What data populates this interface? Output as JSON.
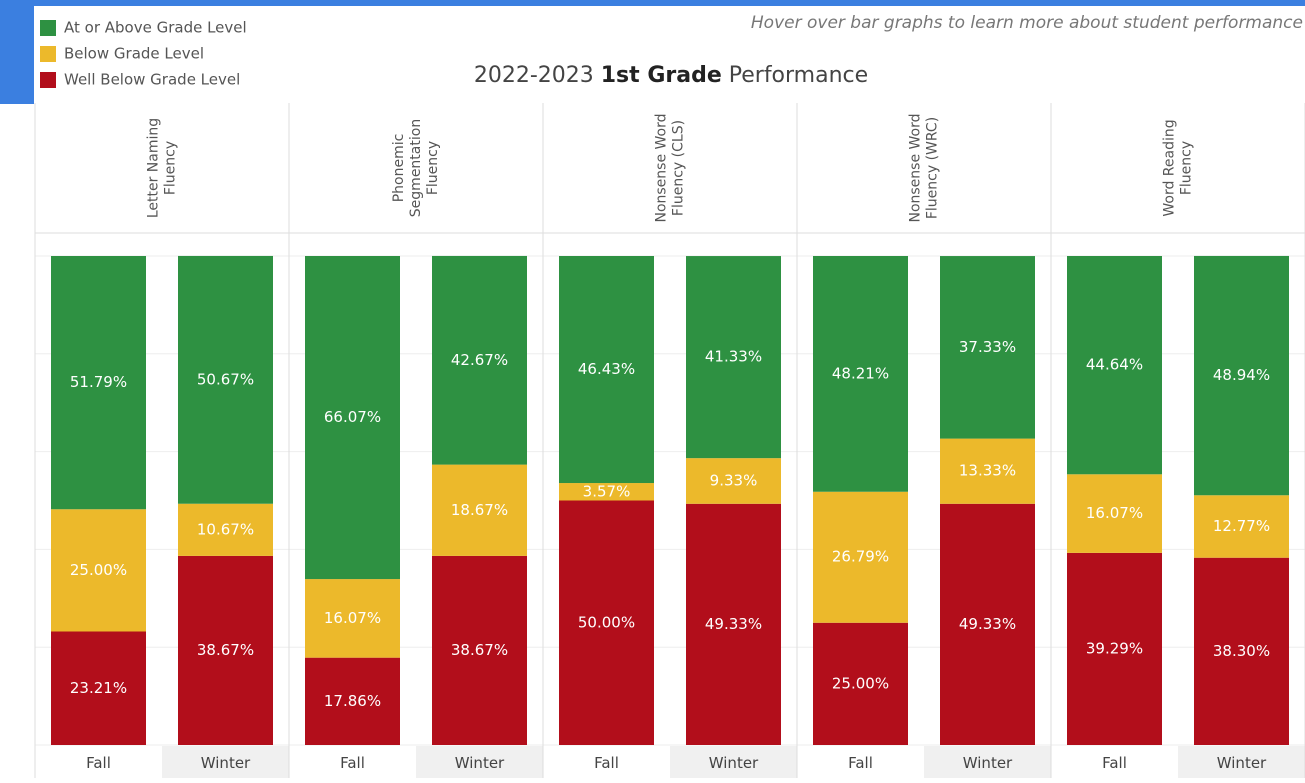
{
  "chart_data": {
    "type": "bar",
    "stacked": true,
    "title": {
      "prefix": "2022-2023",
      "emphasis": "1st Grade",
      "suffix": "Performance"
    },
    "note": "Hover over bar graphs to learn more about student performance",
    "categories": [
      "Fall",
      "Winter"
    ],
    "series": [
      {
        "name": "At or Above Grade Level",
        "color": "#2e9142"
      },
      {
        "name": "Below Grade Level",
        "color": "#ecb92b"
      },
      {
        "name": "Well Below Grade Level",
        "color": "#b20e1b"
      }
    ],
    "ylim": [
      0,
      100
    ],
    "yticks": [
      0,
      20,
      40,
      60,
      80,
      100
    ],
    "grid": true,
    "panels": [
      {
        "header": [
          "Letter Naming",
          "Fluency"
        ],
        "values": [
          [
            51.79,
            50.67
          ],
          [
            25.0,
            10.67
          ],
          [
            23.21,
            38.67
          ]
        ],
        "value_labels": [
          [
            "51.79%",
            "50.67%"
          ],
          [
            "25.00%",
            "10.67%"
          ],
          [
            "23.21%",
            "38.67%"
          ]
        ]
      },
      {
        "header": [
          "Phonemic",
          "Segmentation",
          "Fluency"
        ],
        "values": [
          [
            66.07,
            42.67
          ],
          [
            16.07,
            18.67
          ],
          [
            17.86,
            38.67
          ]
        ],
        "value_labels": [
          [
            "66.07%",
            "42.67%"
          ],
          [
            "16.07%",
            "18.67%"
          ],
          [
            "17.86%",
            "38.67%"
          ]
        ]
      },
      {
        "header": [
          "Nonsense Word",
          "Fluency (CLS)"
        ],
        "values": [
          [
            46.43,
            41.33
          ],
          [
            3.57,
            9.33
          ],
          [
            50.0,
            49.33
          ]
        ],
        "value_labels": [
          [
            "46.43%",
            "41.33%"
          ],
          [
            "3.57%",
            "9.33%"
          ],
          [
            "50.00%",
            "49.33%"
          ]
        ]
      },
      {
        "header": [
          "Nonsense Word",
          "Fluency (WRC)"
        ],
        "values": [
          [
            48.21,
            37.33
          ],
          [
            26.79,
            13.33
          ],
          [
            25.0,
            49.33
          ]
        ],
        "value_labels": [
          [
            "48.21%",
            "37.33%"
          ],
          [
            "26.79%",
            "13.33%"
          ],
          [
            "25.00%",
            "49.33%"
          ]
        ]
      },
      {
        "header": [
          "Word Reading",
          "Fluency"
        ],
        "values": [
          [
            44.64,
            48.94
          ],
          [
            16.07,
            12.77
          ],
          [
            39.29,
            38.3
          ]
        ],
        "value_labels": [
          [
            "44.64%",
            "48.94%"
          ],
          [
            "16.07%",
            "12.77%"
          ],
          [
            "39.29%",
            "38.30%"
          ]
        ]
      }
    ]
  }
}
